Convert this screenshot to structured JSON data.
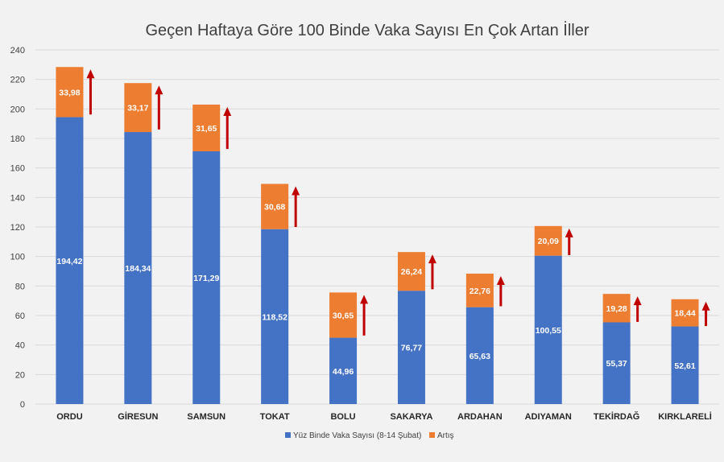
{
  "chart_data": {
    "type": "bar",
    "stacked": true,
    "title": "Geçen Haftaya Göre 100 Binde Vaka Sayısı En Çok Artan İller",
    "xlabel": "",
    "ylabel": "",
    "ylim": [
      0,
      240
    ],
    "yticks": [
      0,
      20,
      40,
      60,
      80,
      100,
      120,
      140,
      160,
      180,
      200,
      220,
      240
    ],
    "grid": true,
    "legend_position": "bottom",
    "categories": [
      "ORDU",
      "GİRESUN",
      "SAMSUN",
      "TOKAT",
      "BOLU",
      "SAKARYA",
      "ARDAHAN",
      "ADIYAMAN",
      "TEKİRDAĞ",
      "KIRKLARELİ"
    ],
    "series": [
      {
        "name": "Yüz Binde Vaka Sayısı (8-14 Şubat)",
        "color": "#4472c4",
        "values": [
          194.42,
          184.34,
          171.29,
          118.52,
          44.96,
          76.77,
          65.63,
          100.55,
          55.37,
          52.61
        ],
        "labels": [
          "194,42",
          "184,34",
          "171,29",
          "118,52",
          "44,96",
          "76,77",
          "65,63",
          "100,55",
          "55,37",
          "52,61"
        ]
      },
      {
        "name": "Artış",
        "color": "#ed7d31",
        "values": [
          33.98,
          33.17,
          31.65,
          30.68,
          30.65,
          26.24,
          22.76,
          20.09,
          19.28,
          18.44
        ],
        "labels": [
          "33,98",
          "33,17",
          "31,65",
          "30,68",
          "30,65",
          "26,24",
          "22,76",
          "20,09",
          "19,28",
          "18,44"
        ]
      }
    ],
    "arrow_color": "#c00000"
  }
}
